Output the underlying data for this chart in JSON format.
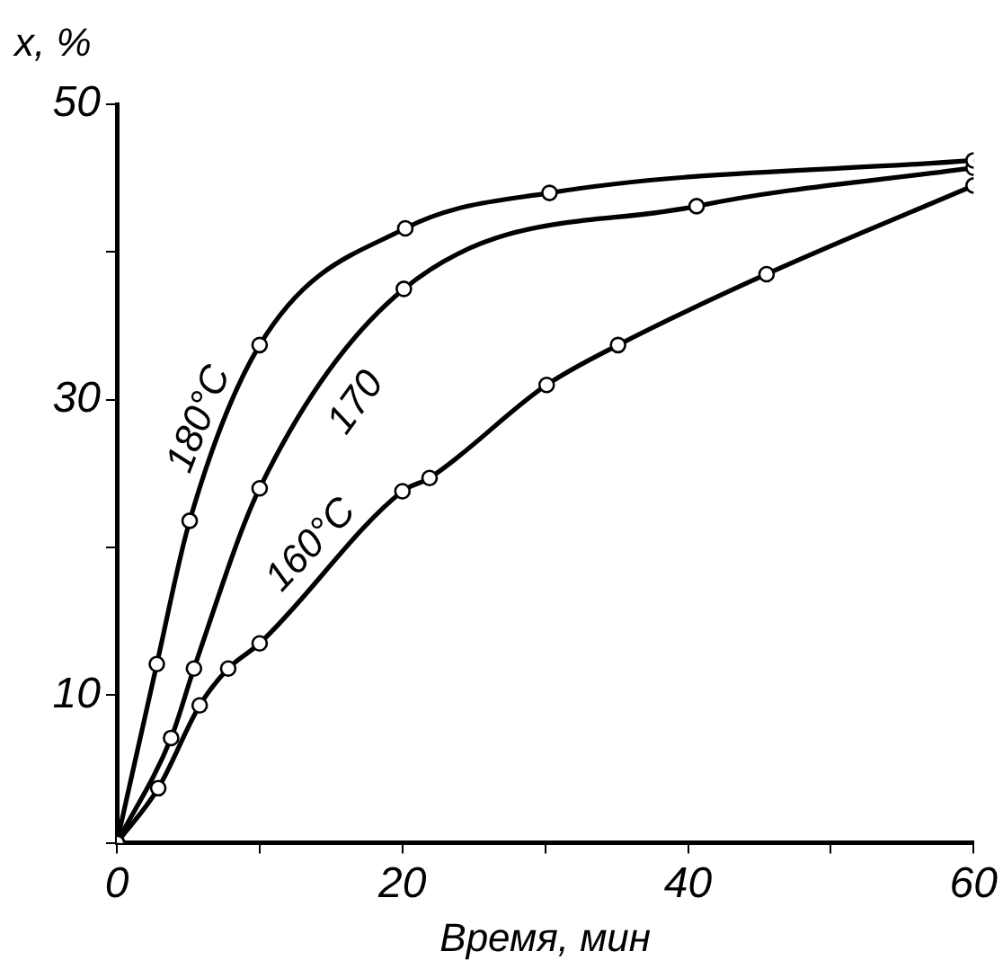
{
  "chart_data": {
    "type": "line",
    "xlabel": "Время, мин",
    "ylabel": "x, %",
    "xlim": [
      0,
      60
    ],
    "ylim": [
      0,
      50
    ],
    "xticks": [
      0,
      {
        "value": 10,
        "label": null
      },
      20,
      {
        "value": 30,
        "label": null
      },
      40,
      {
        "value": 50,
        "label": null
      },
      60
    ],
    "yticks": [
      {
        "value": 0,
        "label": null
      },
      10,
      {
        "value": 20,
        "label": null
      },
      30,
      {
        "value": 40,
        "label": null
      },
      50
    ],
    "grid": false,
    "legend": false,
    "marker": "circle",
    "line_style": "solid",
    "series": [
      {
        "name": "180°C",
        "color": "#000000",
        "x": [
          0,
          2.8,
          5.1,
          10,
          20.2,
          30.3,
          60
        ],
        "values": [
          0,
          12.1,
          21.8,
          33.7,
          41.6,
          44,
          46.2
        ]
      },
      {
        "name": "170",
        "color": "#000000",
        "x": [
          0,
          3.8,
          5.4,
          10,
          20.1,
          40.6,
          60
        ],
        "values": [
          0,
          7.1,
          11.8,
          24,
          37.5,
          43.1,
          45.7
        ]
      },
      {
        "name": "160°C",
        "color": "#000000",
        "x": [
          0,
          2.9,
          5.8,
          7.8,
          10,
          20,
          21.9,
          30.1,
          35.1,
          45.5,
          60
        ],
        "values": [
          0,
          3.7,
          9.3,
          11.8,
          13.5,
          23.8,
          24.7,
          31,
          33.7,
          38.5,
          44.5
        ]
      }
    ]
  }
}
